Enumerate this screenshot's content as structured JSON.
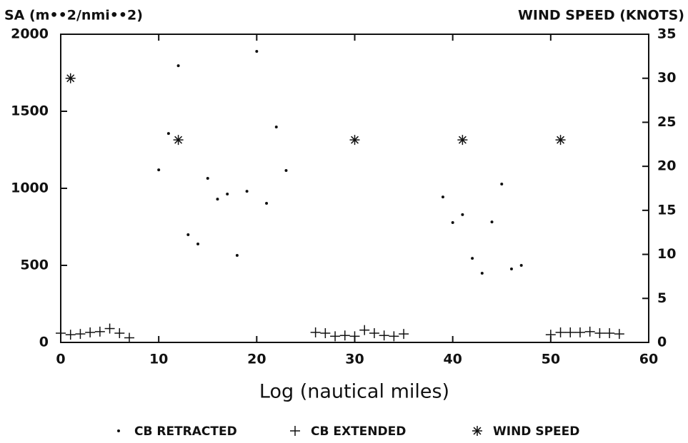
{
  "chart_data": {
    "type": "scatter",
    "y_label": "SA (m••2/nmi••2)",
    "y2_label": "WIND SPEED (KNOTS)",
    "x_label": "Log (nautical miles)",
    "xlim": [
      0,
      60
    ],
    "xticks": [
      0,
      10,
      20,
      30,
      40,
      50,
      60
    ],
    "ylim": [
      0,
      2000
    ],
    "yticks": [
      0,
      500,
      1000,
      1500,
      2000
    ],
    "y2lim": [
      0,
      35
    ],
    "y2ticks": [
      0,
      5,
      10,
      15,
      20,
      25,
      30,
      35
    ],
    "series": [
      {
        "name": "CB RETRACTED",
        "marker": "dot",
        "color": "#111111",
        "x": [
          10,
          11,
          12,
          13,
          14,
          15,
          16,
          17,
          18,
          19,
          20,
          21,
          22,
          23,
          39,
          40,
          41,
          42,
          43,
          44,
          45,
          46,
          47
        ],
        "values": [
          1120,
          1356,
          1796,
          699,
          639,
          1065,
          930,
          963,
          565,
          981,
          1889,
          903,
          1398,
          1116,
          944,
          778,
          829,
          546,
          449,
          782,
          1028,
          477,
          500
        ]
      },
      {
        "name": "CB EXTENDED",
        "marker": "plus",
        "color": "#111111",
        "x": [
          0,
          1,
          2,
          3,
          4,
          5,
          6,
          7,
          26,
          27,
          28,
          29,
          30,
          31,
          32,
          33,
          34,
          35,
          50,
          51,
          52,
          53,
          54,
          55,
          56,
          57
        ],
        "values": [
          60,
          50,
          55,
          65,
          70,
          90,
          60,
          30,
          65,
          60,
          40,
          45,
          40,
          80,
          60,
          45,
          40,
          55,
          50,
          65,
          65,
          65,
          70,
          60,
          60,
          55
        ]
      },
      {
        "name": "WIND SPEED",
        "marker": "star",
        "color": "#111111",
        "axis": "y2",
        "x": [
          1,
          12,
          30,
          41,
          51
        ],
        "values": [
          30,
          23,
          23,
          23,
          23
        ]
      }
    ]
  }
}
